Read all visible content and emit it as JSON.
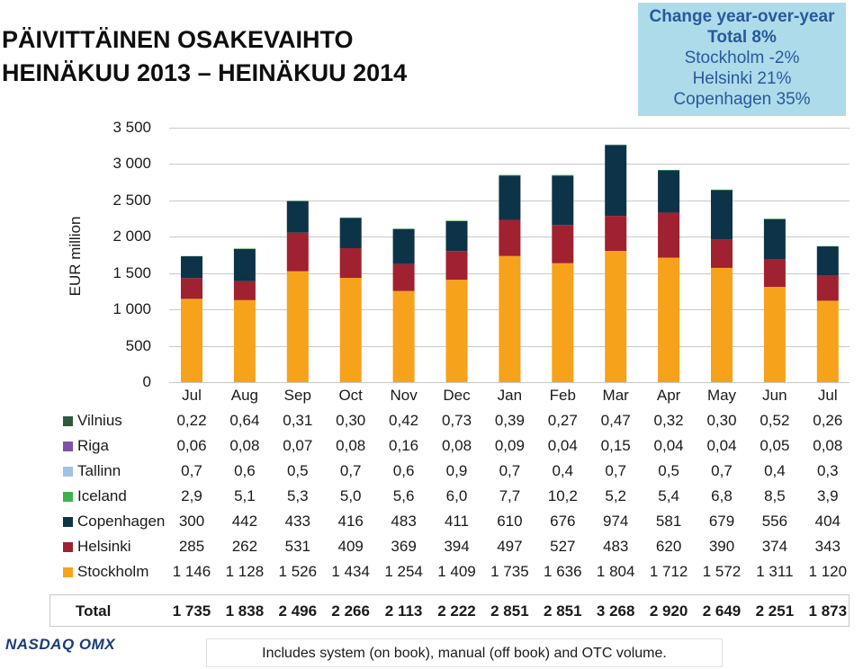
{
  "title": {
    "line1": "PÄIVITTÄINEN OSAKEVAIHTO",
    "line2": "HEINÄKUU 2013 – HEINÄKUU 2014"
  },
  "yoy": {
    "header": "Change year-over-year",
    "total": "Total 8%",
    "stockholm": "Stockholm -2%",
    "helsinki": "Helsinki 21%",
    "copenhagen": "Copenhagen 35%"
  },
  "note": "Includes system (on book), manual (off book) and OTC volume.",
  "logo_text": "NASDAQ OMX",
  "chart_data": {
    "type": "bar",
    "stacked": true,
    "ylabel": "EUR million",
    "ylim": [
      0,
      3500
    ],
    "yticks": [
      "0",
      "500",
      "1 000",
      "1 500",
      "2 000",
      "2 500",
      "3 000",
      "3 500"
    ],
    "ytick_values": [
      0,
      500,
      1000,
      1500,
      2000,
      2500,
      3000,
      3500
    ],
    "grid": true,
    "categories": [
      "Jul",
      "Aug",
      "Sep",
      "Oct",
      "Nov",
      "Dec",
      "Jan",
      "Feb",
      "Mar",
      "Apr",
      "May",
      "Jun",
      "Jul"
    ],
    "series": [
      {
        "name": "Vilnius",
        "color": "#2e5a3a",
        "values": [
          0.22,
          0.64,
          0.31,
          0.3,
          0.42,
          0.73,
          0.39,
          0.27,
          0.47,
          0.32,
          0.3,
          0.52,
          0.26
        ],
        "labels": [
          "0,22",
          "0,64",
          "0,31",
          "0,30",
          "0,42",
          "0,73",
          "0,39",
          "0,27",
          "0,47",
          "0,32",
          "0,30",
          "0,52",
          "0,26"
        ]
      },
      {
        "name": "Riga",
        "color": "#7f52a8",
        "values": [
          0.06,
          0.08,
          0.07,
          0.08,
          0.16,
          0.08,
          0.09,
          0.04,
          0.15,
          0.04,
          0.04,
          0.05,
          0.08
        ],
        "labels": [
          "0,06",
          "0,08",
          "0,07",
          "0,08",
          "0,16",
          "0,08",
          "0,09",
          "0,04",
          "0,15",
          "0,04",
          "0,04",
          "0,05",
          "0,08"
        ]
      },
      {
        "name": "Tallinn",
        "color": "#9dc3e6",
        "values": [
          0.7,
          0.6,
          0.5,
          0.7,
          0.6,
          0.9,
          0.7,
          0.4,
          0.7,
          0.5,
          0.7,
          0.4,
          0.3
        ],
        "labels": [
          "0,7",
          "0,6",
          "0,5",
          "0,7",
          "0,6",
          "0,9",
          "0,7",
          "0,4",
          "0,7",
          "0,5",
          "0,7",
          "0,4",
          "0,3"
        ]
      },
      {
        "name": "Iceland",
        "color": "#3cb44b",
        "values": [
          2.9,
          5.1,
          5.3,
          5.0,
          5.6,
          6.0,
          7.7,
          10.2,
          5.2,
          5.4,
          6.8,
          8.5,
          3.9
        ],
        "labels": [
          "2,9",
          "5,1",
          "5,3",
          "5,0",
          "5,6",
          "6,0",
          "7,7",
          "10,2",
          "5,2",
          "5,4",
          "6,8",
          "8,5",
          "3,9"
        ]
      },
      {
        "name": "Copenhagen",
        "color": "#0d3349",
        "values": [
          300,
          442,
          433,
          416,
          483,
          411,
          610,
          676,
          974,
          581,
          679,
          556,
          404
        ],
        "labels": [
          "300",
          "442",
          "433",
          "416",
          "483",
          "411",
          "610",
          "676",
          "974",
          "581",
          "679",
          "556",
          "404"
        ]
      },
      {
        "name": "Helsinki",
        "color": "#a0212f",
        "values": [
          285,
          262,
          531,
          409,
          369,
          394,
          497,
          527,
          483,
          620,
          390,
          374,
          343
        ],
        "labels": [
          "285",
          "262",
          "531",
          "409",
          "369",
          "394",
          "497",
          "527",
          "483",
          "620",
          "390",
          "374",
          "343"
        ]
      },
      {
        "name": "Stockholm",
        "color": "#f7a21b",
        "values": [
          1146,
          1128,
          1526,
          1434,
          1254,
          1409,
          1735,
          1636,
          1804,
          1712,
          1572,
          1311,
          1120
        ],
        "labels": [
          "1 146",
          "1 128",
          "1 526",
          "1 434",
          "1 254",
          "1 409",
          "1 735",
          "1 636",
          "1 804",
          "1 712",
          "1 572",
          "1 311",
          "1 120"
        ]
      }
    ],
    "total_label": "Total",
    "totals": [
      "1 735",
      "1 838",
      "2 496",
      "2 266",
      "2 113",
      "2 222",
      "2 851",
      "2 851",
      "3 268",
      "2 920",
      "2 649",
      "2 251",
      "1 873"
    ]
  }
}
